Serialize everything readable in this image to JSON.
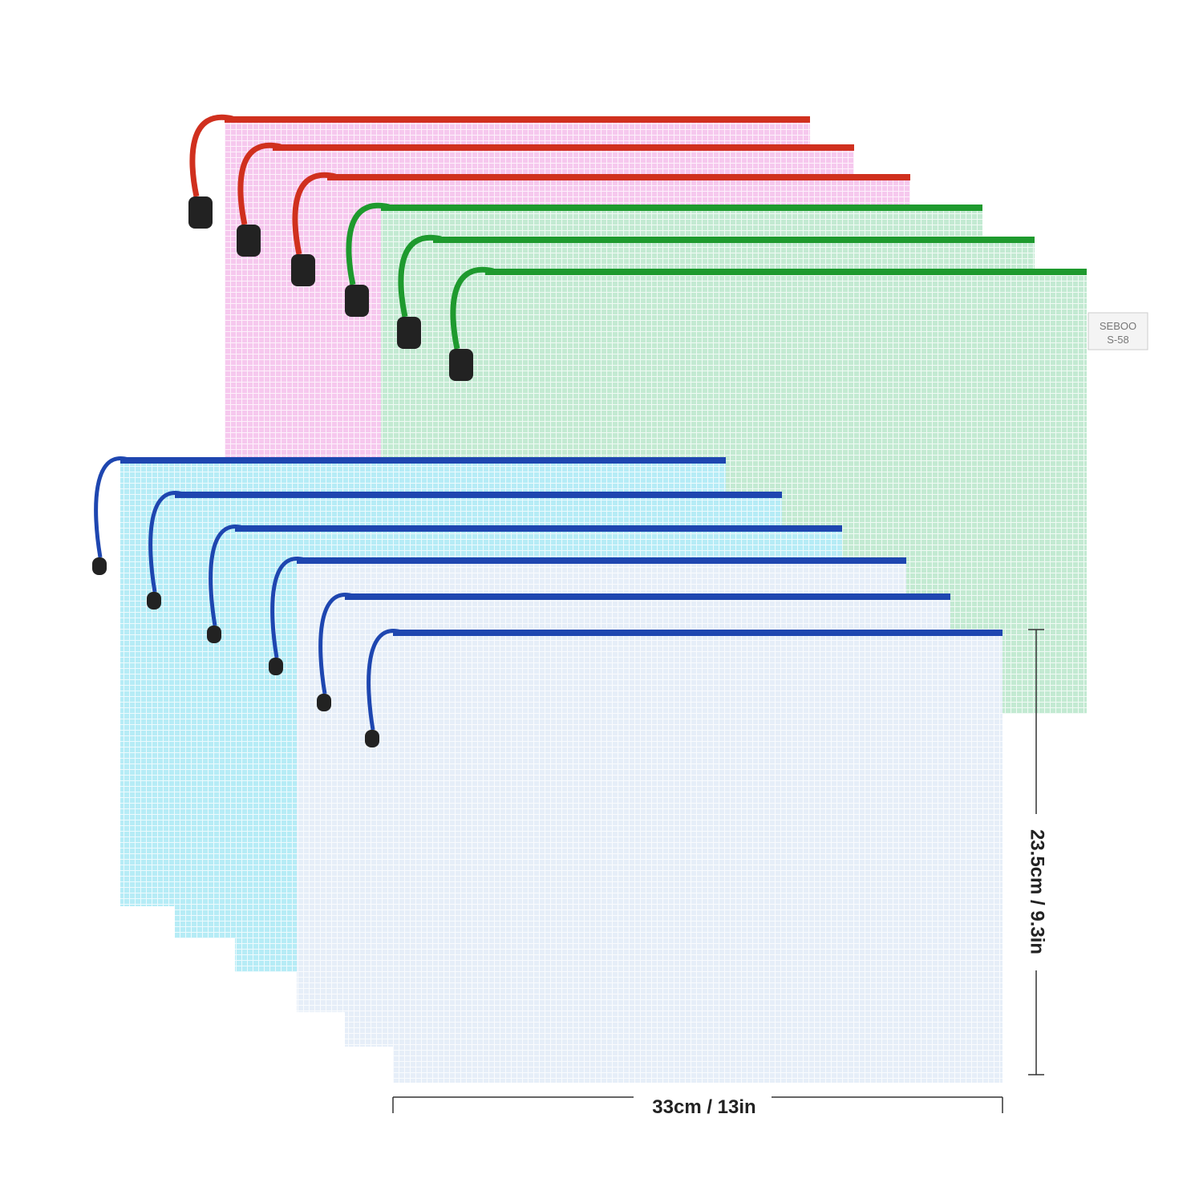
{
  "dimensions": {
    "width": "33cm / 13in",
    "height": "23.5cm / 9.3in"
  },
  "brand_label": {
    "brand": "SEBOO",
    "model": "S-58"
  }
}
